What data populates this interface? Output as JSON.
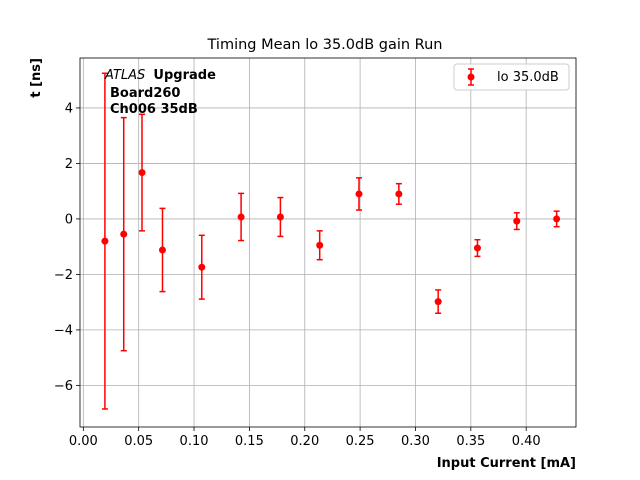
{
  "chart_data": {
    "type": "scatter",
    "title": "Timing Mean lo 35.0dB gain Run",
    "xlabel": "Input Current [mA]",
    "ylabel": "t [ns]",
    "xlim": [
      -0.003,
      0.445
    ],
    "ylim": [
      -7.5,
      5.8
    ],
    "x_ticks": [
      0.0,
      0.05,
      0.1,
      0.15,
      0.2,
      0.25,
      0.3,
      0.35,
      0.4
    ],
    "x_tick_labels": [
      "0.00",
      "0.05",
      "0.10",
      "0.15",
      "0.20",
      "0.25",
      "0.30",
      "0.35",
      "0.40"
    ],
    "y_ticks": [
      -6,
      -4,
      -2,
      0,
      2,
      4
    ],
    "y_tick_labels": [
      "−6",
      "−4",
      "−2",
      "0",
      "2",
      "4"
    ],
    "grid": true,
    "legend_position": "top-right",
    "annotation": {
      "atlas": "ATLAS",
      "upgrade": "Upgrade",
      "line2": "Board260",
      "line3": "Ch006 35dB"
    },
    "series": [
      {
        "name": "lo 35.0dB",
        "color": "#ff0000",
        "marker": "circle",
        "points": [
          {
            "x": 0.0195,
            "y": -0.8,
            "err": 6.05
          },
          {
            "x": 0.0365,
            "y": -0.55,
            "err": 4.2
          },
          {
            "x": 0.053,
            "y": 1.67,
            "err": 2.1
          },
          {
            "x": 0.0715,
            "y": -1.12,
            "err": 1.5
          },
          {
            "x": 0.107,
            "y": -1.74,
            "err": 1.15
          },
          {
            "x": 0.1425,
            "y": 0.07,
            "err": 0.85
          },
          {
            "x": 0.178,
            "y": 0.07,
            "err": 0.7
          },
          {
            "x": 0.2135,
            "y": -0.95,
            "err": 0.52
          },
          {
            "x": 0.249,
            "y": 0.9,
            "err": 0.58
          },
          {
            "x": 0.285,
            "y": 0.9,
            "err": 0.37
          },
          {
            "x": 0.3205,
            "y": -2.98,
            "err": 0.42
          },
          {
            "x": 0.356,
            "y": -1.05,
            "err": 0.3
          },
          {
            "x": 0.3915,
            "y": -0.08,
            "err": 0.3
          },
          {
            "x": 0.4275,
            "y": 0.0,
            "err": 0.28
          }
        ]
      }
    ]
  }
}
